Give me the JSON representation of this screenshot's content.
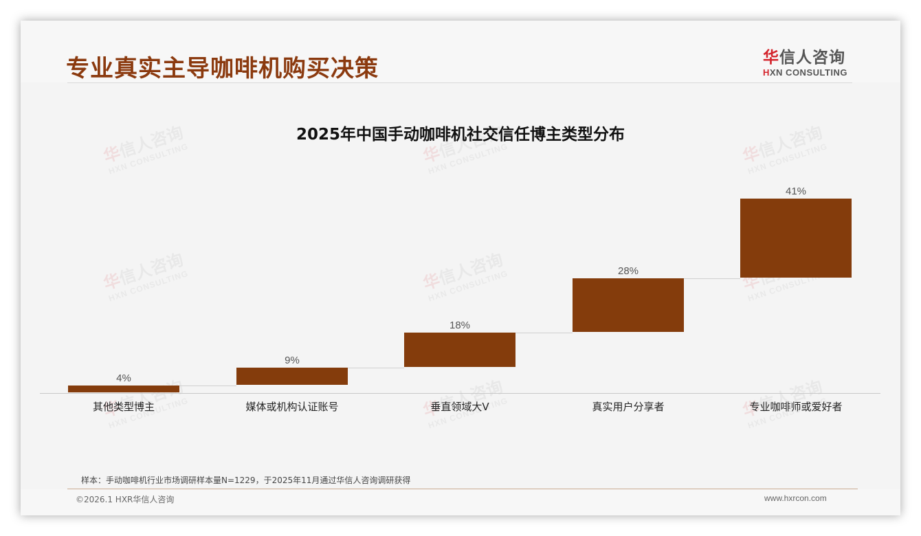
{
  "header": {
    "title": "专业真实主导咖啡机购买决策",
    "logo": {
      "cn_first": "华",
      "cn_rest": "信人咨询",
      "en_first": "H",
      "en_rest": "XN CONSULTING"
    }
  },
  "watermark": {
    "cn_first": "华",
    "cn_rest": "信人咨询",
    "en": "HXN CONSULTING"
  },
  "colors": {
    "bar": "#843c0c",
    "title": "#8b3a0f",
    "logo_accent": "#d4232b"
  },
  "chart_data": {
    "type": "waterfall",
    "title": "2025年中国手动咖啡机社交信任博主类型分布",
    "categories": [
      "其他类型博主",
      "媒体或机构认证账号",
      "垂直领域大V",
      "真实用户分享者",
      "专业咖啡师或爱好者"
    ],
    "values": [
      4,
      9,
      18,
      28,
      41
    ],
    "value_labels": [
      "4%",
      "9%",
      "18%",
      "28%",
      "41%"
    ],
    "cumulative_start": [
      0,
      4,
      13,
      31,
      59
    ],
    "cumulative_end": [
      4,
      13,
      31,
      59,
      100
    ],
    "unit": "%",
    "xlabel": "",
    "ylabel": "",
    "ylim": [
      0,
      100
    ],
    "grid": false,
    "legend": "none",
    "connectors": true
  },
  "footer": {
    "note": "样本：手动咖啡机行业市场调研样本量N=1229，于2025年11月通过华信人咨询调研获得",
    "copyright": "©2026.1 HXR华信人咨询",
    "website": "www.hxrcon.com"
  }
}
